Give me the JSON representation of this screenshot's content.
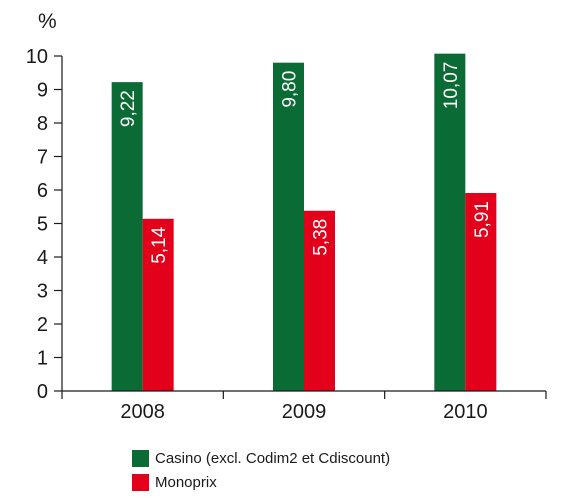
{
  "chart_data": {
    "type": "bar",
    "unit_label": "%",
    "categories": [
      "2008",
      "2009",
      "2010"
    ],
    "series": [
      {
        "name": "Casino (excl.  Codim2 et Cdiscount)",
        "values": [
          9.22,
          9.8,
          10.07
        ],
        "labels": [
          "9,22",
          "9,80",
          "10,07"
        ],
        "color": "#0a6b35"
      },
      {
        "name": "Monoprix",
        "values": [
          5.14,
          5.38,
          5.91
        ],
        "labels": [
          "5,14",
          "5,38",
          "5,91"
        ],
        "color": "#e2001a"
      }
    ],
    "yticks": [
      "0",
      "1",
      "2",
      "3",
      "4",
      "5",
      "6",
      "7",
      "8",
      "9",
      "10"
    ],
    "ylim": [
      0,
      10
    ],
    "grid": false,
    "legend_position": "bottom"
  }
}
